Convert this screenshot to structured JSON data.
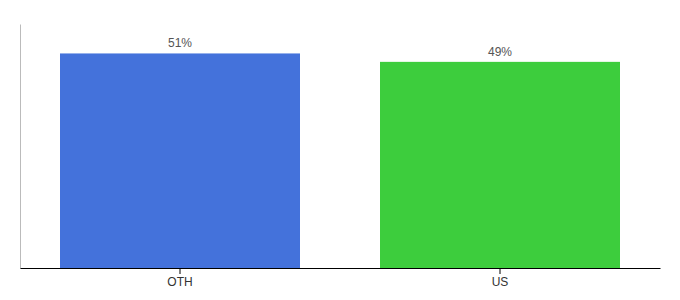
{
  "chart_data": {
    "type": "bar",
    "categories": [
      "OTH",
      "US"
    ],
    "values": [
      51,
      49
    ],
    "value_labels": [
      "51%",
      "49%"
    ],
    "colors": [
      "#4472db",
      "#3dcd3d"
    ],
    "ylim": [
      0,
      58
    ],
    "data_labels": true,
    "tick_labels": "x"
  }
}
